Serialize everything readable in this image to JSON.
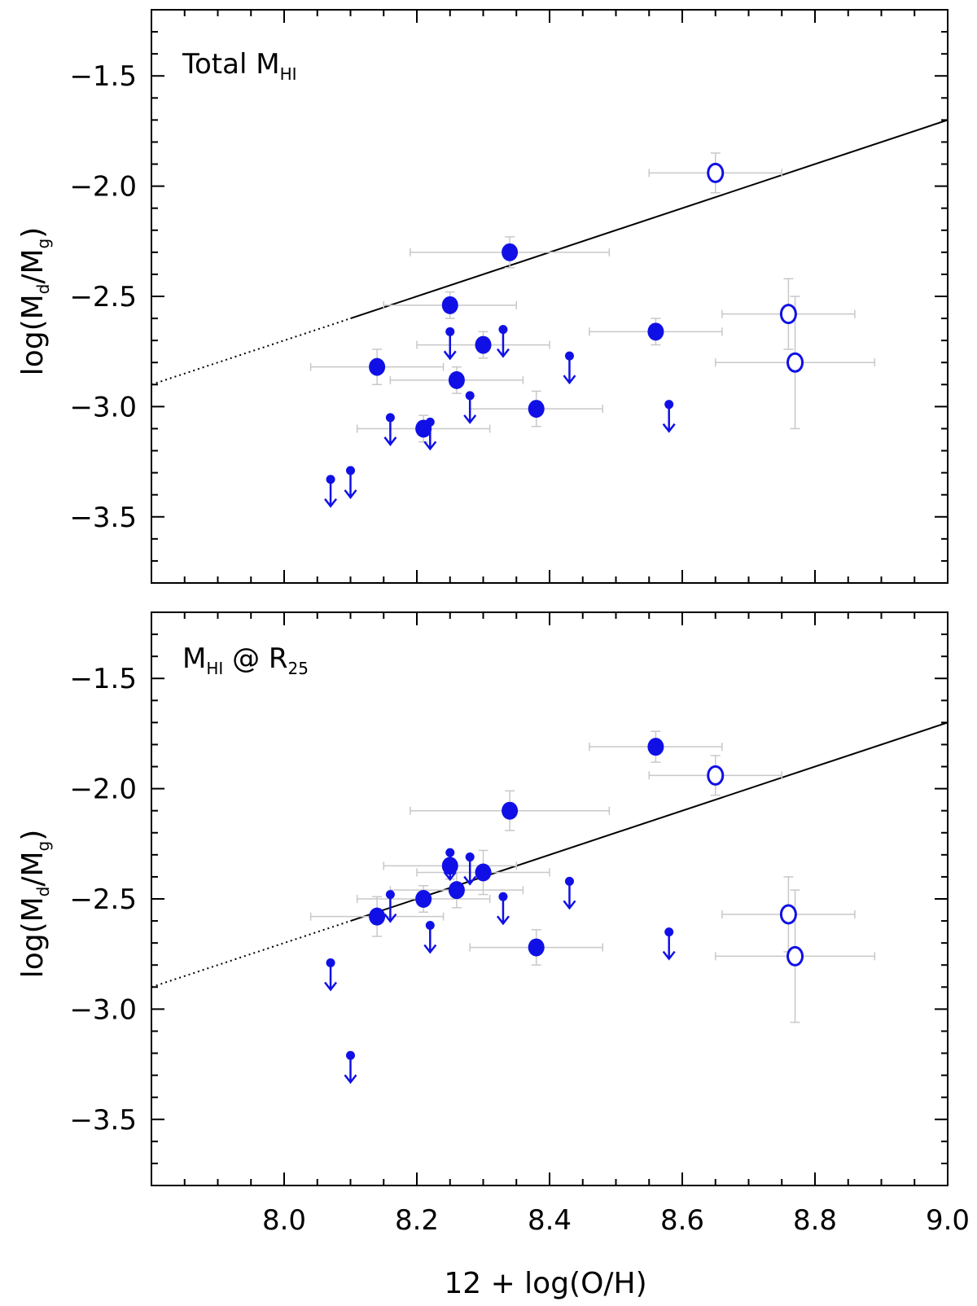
{
  "chart_data": [
    {
      "type": "scatter",
      "panel_label": {
        "prefix": "Total M",
        "sub": "HI",
        "suffix": ""
      },
      "ylabel": {
        "prefix": "log(M",
        "sub1": "d",
        "mid": "/M",
        "sub2": "g",
        "suffix": ")"
      },
      "xlim": [
        7.8,
        9.0
      ],
      "ylim": [
        -3.8,
        -1.2
      ],
      "yticks": [
        -1.5,
        -2.0,
        -2.5,
        -3.0,
        -3.5
      ],
      "ytick_labels": [
        "−1.5",
        "−2.0",
        "−2.5",
        "−3.0",
        "−3.5"
      ],
      "fit_line": {
        "x_dotted": [
          7.8,
          8.1
        ],
        "x_solid": [
          8.1,
          9.0
        ],
        "slope": 1.0,
        "intercept": -10.7
      },
      "detections": [
        {
          "x": 8.14,
          "y": -2.82,
          "xerr": 0.1,
          "yerr": 0.08
        },
        {
          "x": 8.21,
          "y": -3.1,
          "xerr": 0.1,
          "yerr": 0.06
        },
        {
          "x": 8.25,
          "y": -2.54,
          "xerr": 0.1,
          "yerr": 0.06
        },
        {
          "x": 8.26,
          "y": -2.88,
          "xerr": 0.1,
          "yerr": 0.06
        },
        {
          "x": 8.3,
          "y": -2.72,
          "xerr": 0.1,
          "yerr": 0.06
        },
        {
          "x": 8.34,
          "y": -2.3,
          "xerr": 0.15,
          "yerr": 0.07
        },
        {
          "x": 8.38,
          "y": -3.01,
          "xerr": 0.1,
          "yerr": 0.08
        },
        {
          "x": 8.56,
          "y": -2.66,
          "xerr": 0.1,
          "yerr": 0.06
        }
      ],
      "open_points": [
        {
          "x": 8.65,
          "y": -1.94,
          "xerr": 0.1,
          "yerr": 0.09
        },
        {
          "x": 8.76,
          "y": -2.58,
          "xerr": 0.1,
          "yerr": 0.16
        },
        {
          "x": 8.77,
          "y": -2.8,
          "xerr": 0.12,
          "yerr": 0.3
        }
      ],
      "upper_limits": [
        {
          "x": 8.07,
          "y": -3.33
        },
        {
          "x": 8.1,
          "y": -3.29
        },
        {
          "x": 8.16,
          "y": -3.05
        },
        {
          "x": 8.22,
          "y": -3.07
        },
        {
          "x": 8.25,
          "y": -2.66
        },
        {
          "x": 8.28,
          "y": -2.95
        },
        {
          "x": 8.33,
          "y": -2.65
        },
        {
          "x": 8.43,
          "y": -2.77
        },
        {
          "x": 8.58,
          "y": -2.99
        }
      ]
    },
    {
      "type": "scatter",
      "panel_label": {
        "prefix": "M",
        "sub": "HI",
        "suffix": " @ R",
        "sub2": "25"
      },
      "ylabel": {
        "prefix": "log(M",
        "sub1": "d",
        "mid": "/M",
        "sub2": "g",
        "suffix": ")"
      },
      "xlabel": "12 + log(O/H)",
      "xlim": [
        7.8,
        9.0
      ],
      "ylim": [
        -3.8,
        -1.2
      ],
      "xticks": [
        8.0,
        8.2,
        8.4,
        8.6,
        8.8,
        9.0
      ],
      "xtick_labels": [
        "8.0",
        "8.2",
        "8.4",
        "8.6",
        "8.8",
        "9.0"
      ],
      "yticks": [
        -1.5,
        -2.0,
        -2.5,
        -3.0,
        -3.5
      ],
      "ytick_labels": [
        "−1.5",
        "−2.0",
        "−2.5",
        "−3.0",
        "−3.5"
      ],
      "fit_line": {
        "x_dotted": [
          7.8,
          8.1
        ],
        "x_solid": [
          8.1,
          9.0
        ],
        "slope": 1.0,
        "intercept": -10.7
      },
      "detections": [
        {
          "x": 8.14,
          "y": -2.58,
          "xerr": 0.1,
          "yerr": 0.09
        },
        {
          "x": 8.21,
          "y": -2.5,
          "xerr": 0.1,
          "yerr": 0.06
        },
        {
          "x": 8.25,
          "y": -2.35,
          "xerr": 0.1,
          "yerr": 0.06
        },
        {
          "x": 8.26,
          "y": -2.46,
          "xerr": 0.1,
          "yerr": 0.08
        },
        {
          "x": 8.3,
          "y": -2.38,
          "xerr": 0.1,
          "yerr": 0.1
        },
        {
          "x": 8.34,
          "y": -2.1,
          "xerr": 0.15,
          "yerr": 0.09
        },
        {
          "x": 8.38,
          "y": -2.72,
          "xerr": 0.1,
          "yerr": 0.08
        },
        {
          "x": 8.56,
          "y": -1.81,
          "xerr": 0.1,
          "yerr": 0.07
        }
      ],
      "open_points": [
        {
          "x": 8.65,
          "y": -1.94,
          "xerr": 0.1,
          "yerr": 0.09
        },
        {
          "x": 8.76,
          "y": -2.57,
          "xerr": 0.1,
          "yerr": 0.17
        },
        {
          "x": 8.77,
          "y": -2.76,
          "xerr": 0.12,
          "yerr": 0.3
        }
      ],
      "upper_limits": [
        {
          "x": 8.07,
          "y": -2.79
        },
        {
          "x": 8.1,
          "y": -3.21
        },
        {
          "x": 8.16,
          "y": -2.48
        },
        {
          "x": 8.22,
          "y": -2.62
        },
        {
          "x": 8.25,
          "y": -2.29
        },
        {
          "x": 8.28,
          "y": -2.31
        },
        {
          "x": 8.33,
          "y": -2.49
        },
        {
          "x": 8.43,
          "y": -2.42
        },
        {
          "x": 8.58,
          "y": -2.65
        }
      ]
    }
  ],
  "colors": {
    "points": "#1010e6",
    "errorbars": "#c8c8c8",
    "axes": "#000000",
    "fit": "#000000"
  }
}
